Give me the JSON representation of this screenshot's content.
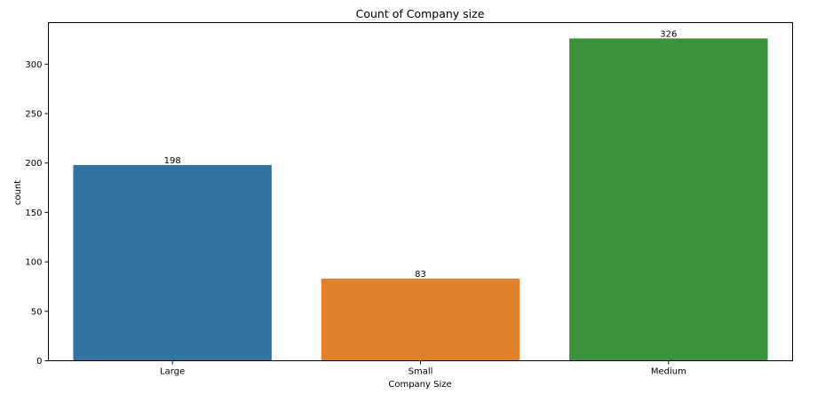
{
  "chart_data": {
    "type": "bar",
    "title": "Count of Company size",
    "xlabel": "Company Size",
    "ylabel": "count",
    "categories": [
      "Large",
      "Small",
      "Medium"
    ],
    "values": [
      198,
      83,
      326
    ],
    "data_labels": [
      "198",
      "83",
      "326"
    ],
    "colors": [
      "#3274a1",
      "#e1812c",
      "#3a923a"
    ],
    "ylim": [
      0,
      342
    ],
    "yticks": [
      0,
      50,
      100,
      150,
      200,
      250,
      300
    ],
    "ytick_labels": [
      "0",
      "50",
      "100",
      "150",
      "200",
      "250",
      "300"
    ],
    "grid": false,
    "legend": "none"
  }
}
